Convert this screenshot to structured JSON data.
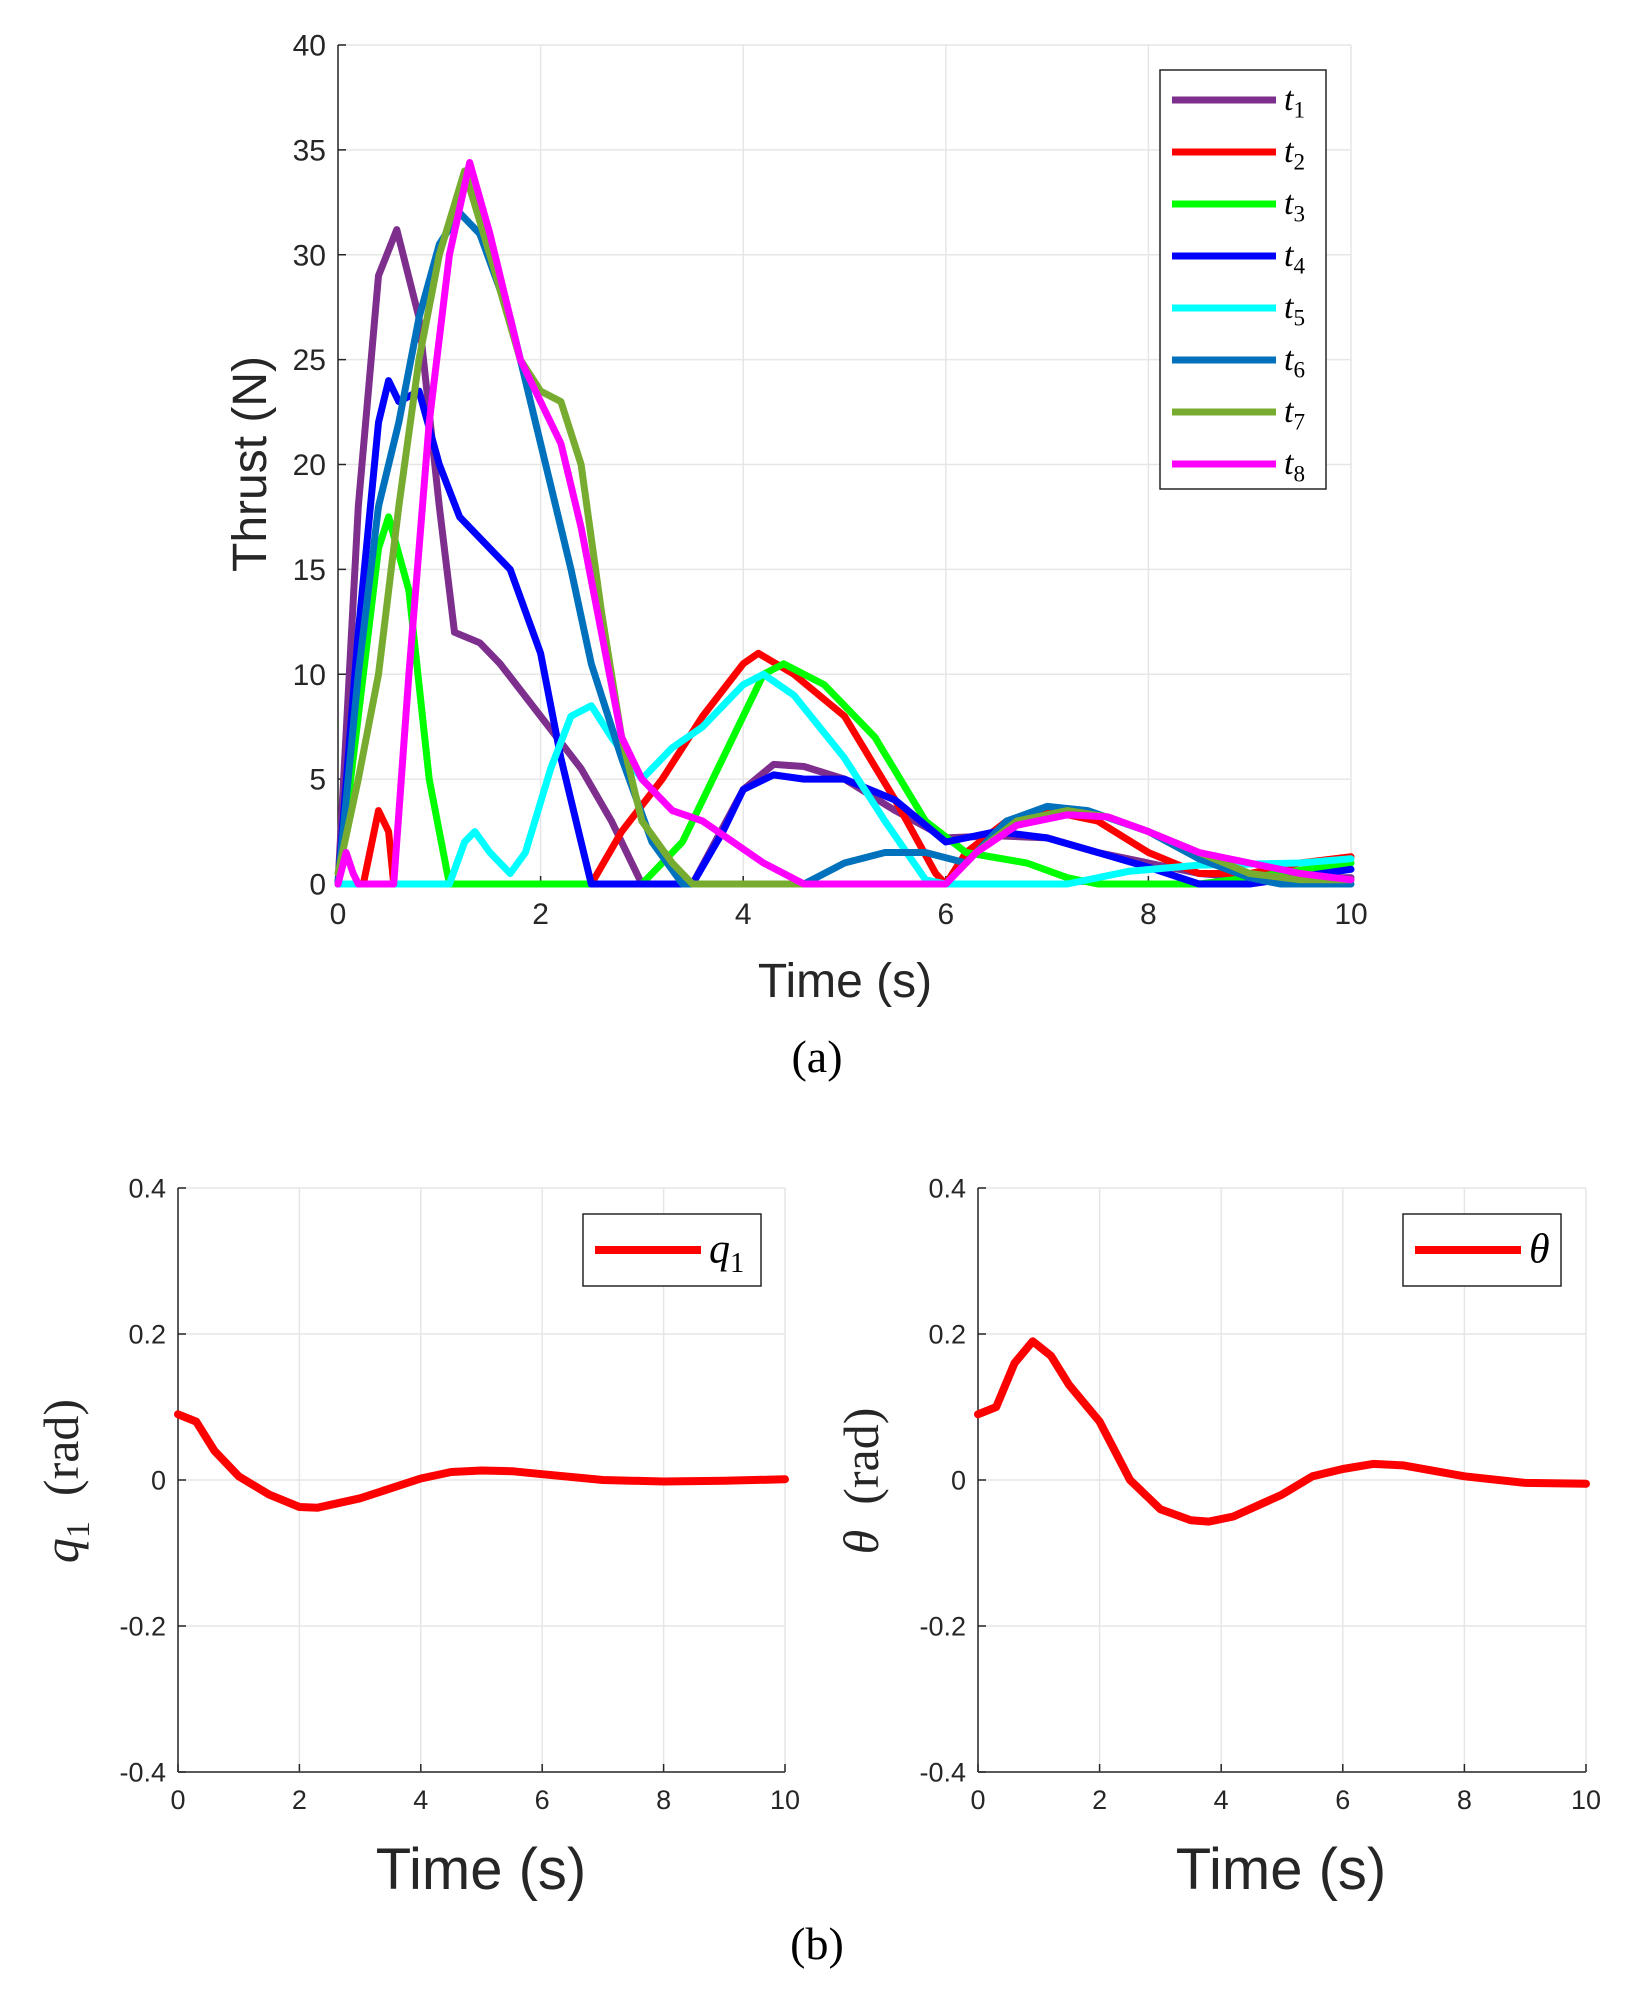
{
  "captions": {
    "a": "(a)",
    "b": "(b)"
  },
  "chart_data": [
    {
      "type": "line",
      "title": "",
      "xlabel": "Time (s)",
      "ylabel": "Thrust (N)",
      "xlim": [
        0,
        10
      ],
      "ylim": [
        0,
        40
      ],
      "xticks": [
        0,
        2,
        4,
        6,
        8,
        10
      ],
      "yticks": [
        0,
        5,
        10,
        15,
        20,
        25,
        30,
        35,
        40
      ],
      "grid": true,
      "legend_position": "top-right",
      "series": [
        {
          "name": "t1",
          "color": "#7E2F8E",
          "x": [
            0,
            0.2,
            0.4,
            0.58,
            0.8,
            1.0,
            1.15,
            1.4,
            1.6,
            2.0,
            2.4,
            2.7,
            3.0,
            3.5,
            4.0,
            4.3,
            4.6,
            5.0,
            5.5,
            6.0,
            6.5,
            7.0,
            7.5,
            8,
            8.5,
            9,
            10
          ],
          "y": [
            0,
            18,
            29,
            31.2,
            27,
            18,
            12,
            11.5,
            10.5,
            8,
            5.5,
            3,
            0,
            0,
            4.5,
            5.7,
            5.6,
            5,
            3.5,
            2.2,
            2.3,
            2.2,
            1.5,
            1,
            0.5,
            0.3,
            0.3
          ]
        },
        {
          "name": "t2",
          "color": "#FF0000",
          "x": [
            0,
            0.25,
            0.4,
            0.5,
            0.55,
            2.5,
            2.8,
            3.2,
            3.6,
            4.0,
            4.15,
            4.5,
            5,
            5.5,
            5.9,
            6,
            6.2,
            6.6,
            7,
            7.5,
            8,
            8.5,
            9,
            9.5,
            10
          ],
          "y": [
            0,
            0,
            3.5,
            2.5,
            0,
            0,
            2.5,
            5,
            8,
            10.5,
            11,
            10,
            8,
            4,
            0.5,
            0,
            1.5,
            3,
            3.5,
            3,
            1.5,
            0.5,
            0.5,
            1,
            1.3
          ]
        },
        {
          "name": "t3",
          "color": "#00FF00",
          "x": [
            0,
            0.2,
            0.4,
            0.5,
            0.7,
            0.9,
            1.1,
            3.0,
            3.4,
            3.8,
            4.2,
            4.4,
            4.8,
            5.3,
            5.8,
            6.2,
            6.8,
            7.2,
            7.5,
            8.5,
            9,
            10
          ],
          "y": [
            0,
            8,
            16,
            17.5,
            14,
            5,
            0,
            0,
            2,
            6,
            10,
            10.5,
            9.5,
            7,
            3,
            1.5,
            1,
            0.3,
            0,
            0,
            0.3,
            1
          ]
        },
        {
          "name": "t4",
          "color": "#0000FF",
          "x": [
            0,
            0.2,
            0.4,
            0.5,
            0.6,
            0.8,
            1.0,
            1.2,
            1.5,
            1.7,
            2.0,
            2.2,
            2.4,
            2.5,
            3.5,
            3.8,
            4.0,
            4.3,
            4.6,
            5.0,
            5.5,
            6.0,
            6.5,
            7.0,
            7.5,
            8,
            8.5,
            9,
            10
          ],
          "y": [
            0,
            12,
            22,
            24,
            23,
            23.5,
            20,
            17.5,
            16,
            15,
            11,
            6,
            2,
            0,
            0,
            2.5,
            4.5,
            5.2,
            5,
            5,
            4,
            2,
            2.5,
            2.2,
            1.5,
            0.8,
            0,
            0,
            0.7
          ]
        },
        {
          "name": "t5",
          "color": "#00FFFF",
          "x": [
            0,
            1.1,
            1.25,
            1.35,
            1.5,
            1.7,
            1.85,
            2.1,
            2.3,
            2.5,
            2.7,
            3,
            3.3,
            3.6,
            4.0,
            4.2,
            4.5,
            5.0,
            5.4,
            5.8,
            6,
            7.2,
            7.8,
            8.5,
            9.5,
            10
          ],
          "y": [
            0,
            0,
            2,
            2.5,
            1.5,
            0.5,
            1.5,
            5.5,
            8,
            8.5,
            7,
            5,
            6.5,
            7.5,
            9.5,
            10,
            9,
            6,
            3,
            0.2,
            0,
            0,
            0.6,
            0.9,
            1,
            1.2
          ]
        },
        {
          "name": "t6",
          "color": "#0072BD",
          "x": [
            0,
            0.2,
            0.4,
            0.6,
            0.8,
            1.0,
            1.2,
            1.4,
            1.7,
            2.0,
            2.3,
            2.5,
            2.8,
            3.1,
            3.4,
            4.6,
            5.0,
            5.4,
            5.8,
            6.2,
            6.6,
            7.0,
            7.4,
            8,
            8.5,
            9,
            9.3,
            10
          ],
          "y": [
            0,
            10,
            18,
            22,
            27,
            30.5,
            32,
            31,
            27,
            21,
            15,
            10.5,
            6,
            2,
            0,
            0,
            1,
            1.5,
            1.5,
            1,
            3,
            3.7,
            3.5,
            2.5,
            1.2,
            0.3,
            0,
            0
          ]
        },
        {
          "name": "t7",
          "color": "#77AC30",
          "x": [
            0,
            0.2,
            0.4,
            0.6,
            0.8,
            1.0,
            1.25,
            1.5,
            1.8,
            2.0,
            2.2,
            2.4,
            2.6,
            2.8,
            3.0,
            3.3,
            3.5,
            6,
            6.3,
            6.7,
            7.2,
            7.6,
            8,
            8.5,
            9,
            9.5,
            10
          ],
          "y": [
            0.5,
            5,
            10,
            18,
            25,
            30,
            34,
            30,
            25,
            23.5,
            23,
            20,
            13,
            7,
            3,
            1,
            0,
            0,
            1.5,
            3,
            3.5,
            3.2,
            2.5,
            1.5,
            0.5,
            0.2,
            0.2
          ]
        },
        {
          "name": "t8",
          "color": "#FF00FF",
          "x": [
            0,
            0.08,
            0.15,
            0.2,
            0.55,
            0.7,
            0.9,
            1.1,
            1.3,
            1.5,
            1.8,
            2.0,
            2.2,
            2.4,
            2.6,
            2.8,
            3.0,
            3.3,
            3.6,
            3.9,
            4.2,
            4.6,
            6.0,
            6.3,
            6.7,
            7.2,
            7.6,
            8,
            8.5,
            9,
            9.5,
            10
          ],
          "y": [
            0,
            1.5,
            0.5,
            0,
            0,
            10,
            22,
            30,
            34.4,
            31,
            25,
            23,
            21,
            17,
            12,
            7,
            5,
            3.5,
            3,
            2,
            1,
            0,
            0,
            1.5,
            2.8,
            3.3,
            3.2,
            2.5,
            1.5,
            1,
            0.5,
            0.2
          ]
        }
      ]
    },
    {
      "type": "line",
      "xlabel": "Time (s)",
      "ylabel": "q1 (rad)",
      "xlim": [
        0,
        10
      ],
      "ylim": [
        -0.4,
        0.4
      ],
      "xticks": [
        "0",
        "2",
        "4",
        "6",
        "8",
        "10"
      ],
      "yticks": [
        "-0.4",
        "-0.2",
        "0",
        "0.2",
        "0.4"
      ],
      "grid": true,
      "legend_position": "top-right",
      "series": [
        {
          "name": "q1",
          "color": "#FF0000",
          "x": [
            0,
            0.3,
            0.6,
            1.0,
            1.5,
            2.0,
            2.3,
            3,
            4,
            4.5,
            5,
            5.5,
            6,
            7,
            8,
            9,
            10
          ],
          "y": [
            0.09,
            0.08,
            0.04,
            0.005,
            -0.02,
            -0.037,
            -0.038,
            -0.025,
            0.002,
            0.011,
            0.013,
            0.012,
            0.008,
            0.0,
            -0.002,
            -0.001,
            0.001
          ]
        }
      ]
    },
    {
      "type": "line",
      "xlabel": "Time (s)",
      "ylabel": "θ (rad)",
      "xlim": [
        0,
        10
      ],
      "ylim": [
        -0.4,
        0.4
      ],
      "xticks": [
        "0",
        "2",
        "4",
        "6",
        "8",
        "10"
      ],
      "yticks": [
        "-0.4",
        "-0.2",
        "0",
        "0.2",
        "0.4"
      ],
      "grid": true,
      "legend_position": "top-right",
      "series": [
        {
          "name": "θ",
          "color": "#FF0000",
          "x": [
            0,
            0.3,
            0.6,
            0.9,
            1.2,
            1.5,
            2.0,
            2.5,
            3.0,
            3.5,
            3.8,
            4.2,
            5,
            5.5,
            6,
            6.5,
            7,
            8,
            9,
            10
          ],
          "y": [
            0.09,
            0.1,
            0.16,
            0.19,
            0.17,
            0.13,
            0.08,
            0.0,
            -0.04,
            -0.055,
            -0.057,
            -0.05,
            -0.02,
            0.005,
            0.015,
            0.022,
            0.02,
            0.005,
            -0.004,
            -0.005
          ]
        }
      ]
    }
  ]
}
